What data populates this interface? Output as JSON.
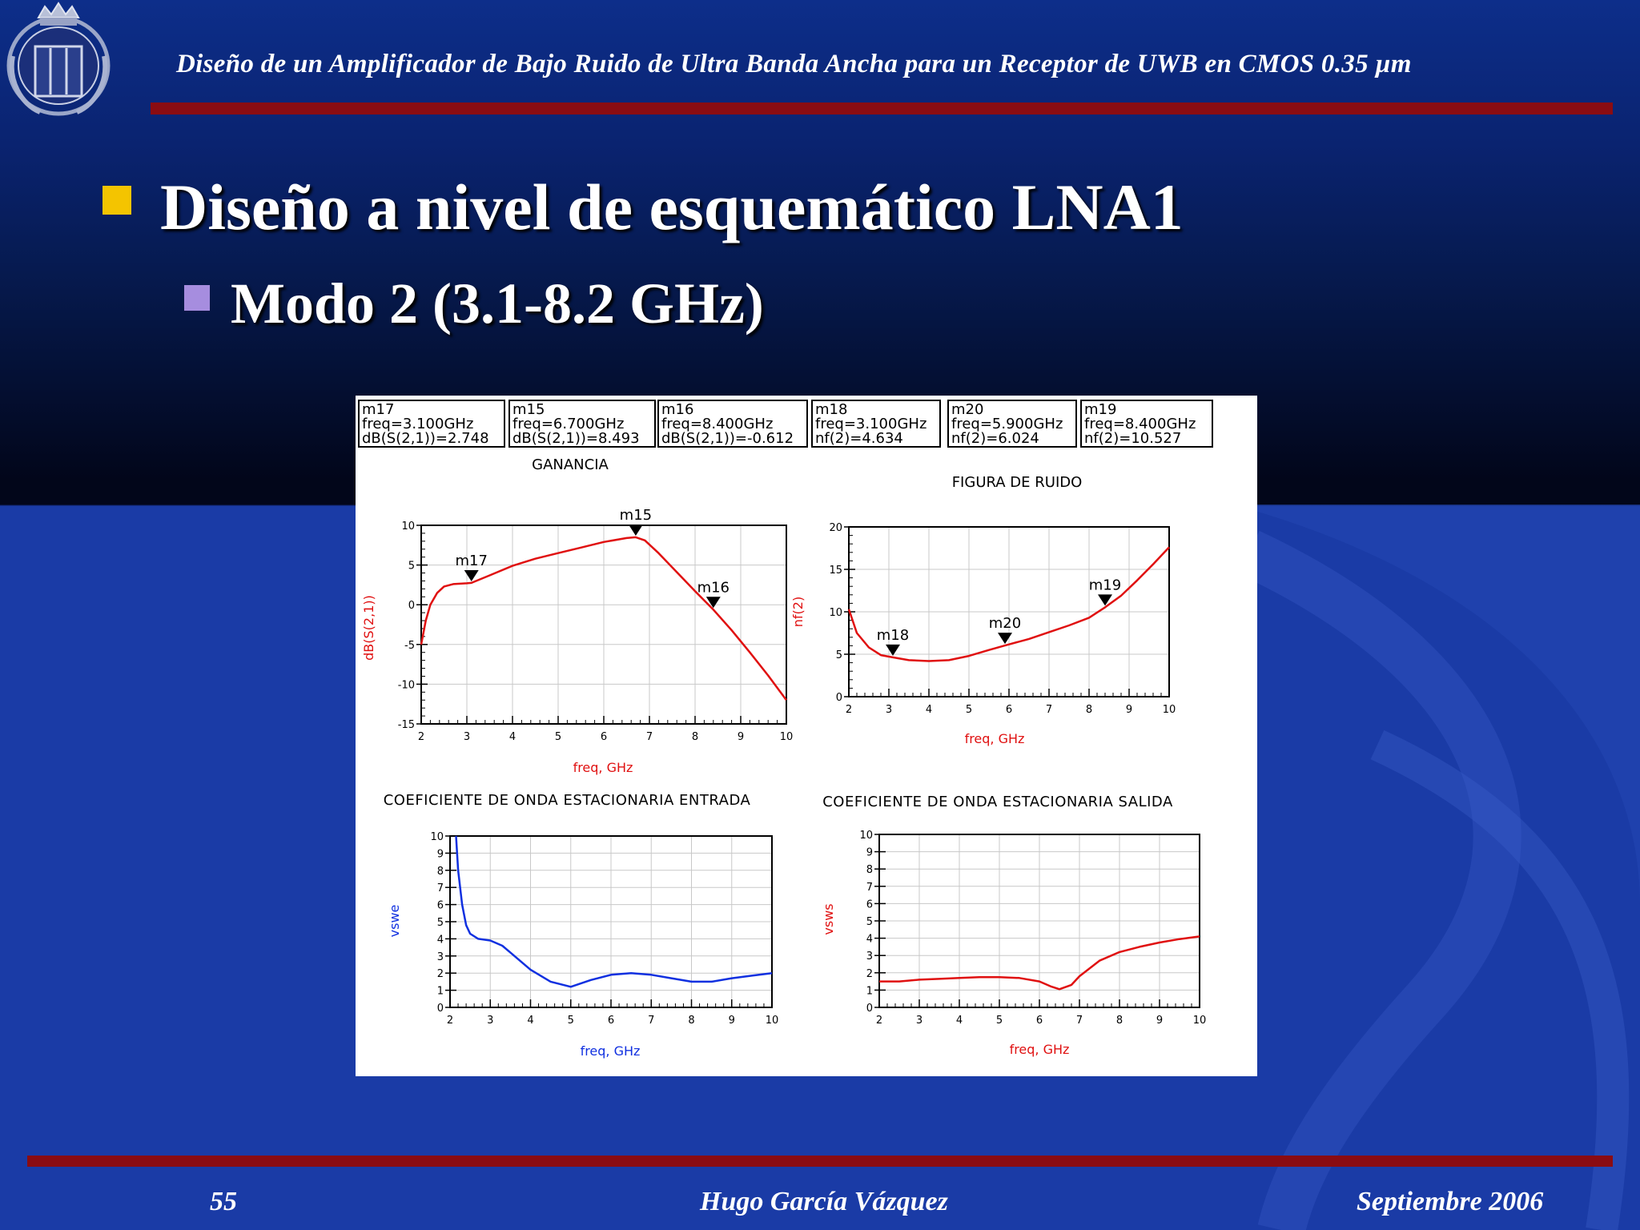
{
  "header": {
    "title": "Diseño de un Amplificador de Bajo Ruido de Ultra Banda Ancha para un Receptor de UWB en CMOS 0.35 µm"
  },
  "bullets": {
    "level1": "Diseño a nivel de esquemático LNA1",
    "level2": "Modo 2 (3.1-8.2 GHz)"
  },
  "footer": {
    "page": "55",
    "author": "Hugo García Vázquez",
    "date": "Septiembre 2006"
  },
  "colors": {
    "red_curve": "#e01010",
    "blue_curve": "#1030e0",
    "accent_bar": "#8a0c12",
    "bullet1": "#f4c400",
    "bullet2": "#a68ddf"
  },
  "markers": [
    {
      "name": "m17",
      "line1": "freq=3.100GHz",
      "line2": "dB(S(2,1))=2.748"
    },
    {
      "name": "m15",
      "line1": "freq=6.700GHz",
      "line2": "dB(S(2,1))=8.493"
    },
    {
      "name": "m16",
      "line1": "freq=8.400GHz",
      "line2": "dB(S(2,1))=-0.612"
    },
    {
      "name": "m18",
      "line1": "freq=3.100GHz",
      "line2": "nf(2)=4.634"
    },
    {
      "name": "m20",
      "line1": "freq=5.900GHz",
      "line2": "nf(2)=6.024"
    },
    {
      "name": "m19",
      "line1": "freq=8.400GHz",
      "line2": "nf(2)=10.527"
    }
  ],
  "chart_data": [
    {
      "type": "line",
      "title": "GANANCIA",
      "xlabel": "freq, GHz",
      "ylabel": "dB(S(2,1))",
      "xlim": [
        2,
        10
      ],
      "ylim": [
        -15,
        10
      ],
      "xticks": [
        "2",
        "3",
        "4",
        "5",
        "6",
        "7",
        "8",
        "9",
        "10"
      ],
      "yticks": [
        "10",
        "5",
        "0",
        "-5",
        "-10",
        "-15"
      ],
      "series": [
        {
          "color": "red",
          "x": [
            2,
            2.1,
            2.2,
            2.35,
            2.5,
            2.7,
            3.0,
            3.1,
            3.5,
            4.0,
            4.5,
            5.0,
            5.5,
            6.0,
            6.5,
            6.7,
            6.9,
            7.2,
            7.6,
            8.0,
            8.4,
            8.8,
            9.2,
            9.6,
            10.0
          ],
          "y": [
            -5.0,
            -2.0,
            0.0,
            1.5,
            2.3,
            2.6,
            2.7,
            2.748,
            3.7,
            4.9,
            5.8,
            6.5,
            7.2,
            7.9,
            8.4,
            8.493,
            8.1,
            6.5,
            4.1,
            1.7,
            -0.612,
            -3.2,
            -6.0,
            -8.9,
            -12.0
          ]
        }
      ],
      "markers": [
        {
          "name": "m17",
          "x": 3.1,
          "y": 2.748
        },
        {
          "name": "m15",
          "x": 6.7,
          "y": 8.493
        },
        {
          "name": "m16",
          "x": 8.4,
          "y": -0.612
        }
      ]
    },
    {
      "type": "line",
      "title": "FIGURA DE RUIDO",
      "xlabel": "freq, GHz",
      "ylabel": "nf(2)",
      "xlim": [
        2,
        10
      ],
      "ylim": [
        0,
        20
      ],
      "xticks": [
        "2",
        "3",
        "4",
        "5",
        "6",
        "7",
        "8",
        "9",
        "10"
      ],
      "yticks": [
        "20",
        "15",
        "10",
        "5",
        "0"
      ],
      "series": [
        {
          "color": "red",
          "x": [
            2.0,
            2.2,
            2.5,
            2.8,
            3.1,
            3.5,
            4.0,
            4.5,
            5.0,
            5.5,
            5.9,
            6.5,
            7.0,
            7.5,
            8.0,
            8.4,
            8.8,
            9.2,
            9.6,
            10.0
          ],
          "y": [
            10.3,
            7.5,
            5.8,
            4.9,
            4.634,
            4.3,
            4.2,
            4.3,
            4.8,
            5.5,
            6.024,
            6.8,
            7.6,
            8.4,
            9.3,
            10.527,
            11.9,
            13.7,
            15.6,
            17.6
          ]
        }
      ],
      "markers": [
        {
          "name": "m18",
          "x": 3.1,
          "y": 4.634
        },
        {
          "name": "m20",
          "x": 5.9,
          "y": 6.024
        },
        {
          "name": "m19",
          "x": 8.4,
          "y": 10.527
        }
      ]
    },
    {
      "type": "line",
      "title": "COEFICIENTE DE ONDA ESTACIONARIA ENTRADA",
      "xlabel": "freq, GHz",
      "ylabel": "vswe",
      "xlim": [
        2,
        10
      ],
      "ylim": [
        0,
        10
      ],
      "xticks": [
        "2",
        "3",
        "4",
        "5",
        "6",
        "7",
        "8",
        "9",
        "10"
      ],
      "yticks": [
        "10",
        "9",
        "8",
        "7",
        "6",
        "5",
        "4",
        "3",
        "2",
        "1",
        "0"
      ],
      "series": [
        {
          "color": "blue",
          "x": [
            2.15,
            2.2,
            2.3,
            2.4,
            2.5,
            2.7,
            3.0,
            3.3,
            3.6,
            4.0,
            4.5,
            5.0,
            5.5,
            6.0,
            6.5,
            7.0,
            7.5,
            8.0,
            8.5,
            9.0,
            9.5,
            10.0
          ],
          "y": [
            10.0,
            8.0,
            6.0,
            4.8,
            4.3,
            4.0,
            3.9,
            3.6,
            3.0,
            2.2,
            1.5,
            1.2,
            1.6,
            1.9,
            2.0,
            1.9,
            1.7,
            1.5,
            1.5,
            1.7,
            1.85,
            2.0
          ]
        }
      ]
    },
    {
      "type": "line",
      "title": "COEFICIENTE DE ONDA ESTACIONARIA SALIDA",
      "xlabel": "freq, GHz",
      "ylabel": "vsws",
      "xlim": [
        2,
        10
      ],
      "ylim": [
        0,
        10
      ],
      "xticks": [
        "2",
        "3",
        "4",
        "5",
        "6",
        "7",
        "8",
        "9",
        "10"
      ],
      "yticks": [
        "10",
        "9",
        "8",
        "7",
        "6",
        "5",
        "4",
        "3",
        "2",
        "1",
        "0"
      ],
      "series": [
        {
          "color": "red",
          "x": [
            2.0,
            2.5,
            3.0,
            3.5,
            4.0,
            4.5,
            5.0,
            5.5,
            6.0,
            6.3,
            6.5,
            6.8,
            7.0,
            7.5,
            8.0,
            8.5,
            9.0,
            9.5,
            10.0
          ],
          "y": [
            1.5,
            1.5,
            1.6,
            1.65,
            1.7,
            1.75,
            1.75,
            1.7,
            1.5,
            1.2,
            1.05,
            1.3,
            1.8,
            2.7,
            3.2,
            3.5,
            3.75,
            3.95,
            4.1
          ]
        }
      ]
    }
  ]
}
